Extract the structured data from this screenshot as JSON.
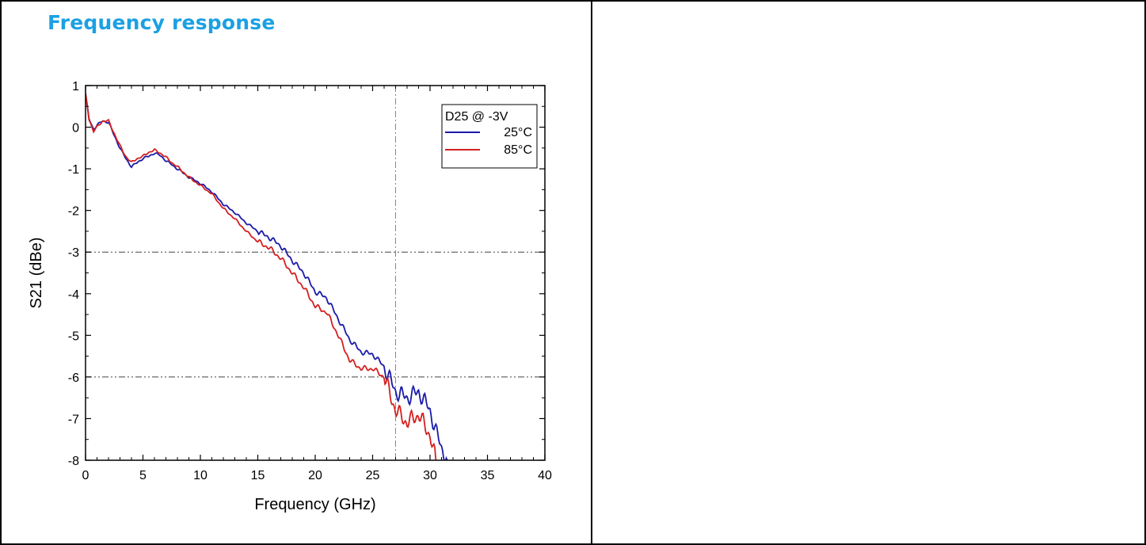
{
  "heading": "Frequency response",
  "chart_data": {
    "type": "line",
    "title": "",
    "xlabel": "Frequency (GHz)",
    "ylabel": "S21 (dBe)",
    "xlim": [
      0,
      40
    ],
    "ylim": [
      -8,
      1
    ],
    "x_ticks": [
      0,
      5,
      10,
      15,
      20,
      25,
      30,
      35,
      40
    ],
    "y_ticks": [
      1,
      0,
      -1,
      -2,
      -3,
      -4,
      -5,
      -6,
      -7,
      -8
    ],
    "x_tick_labels": [
      "0",
      "5",
      "10",
      "15",
      "20",
      "25",
      "30",
      "35",
      "40"
    ],
    "y_tick_labels": [
      "1",
      "0",
      "-1",
      "-2",
      "-3",
      "-4",
      "-5",
      "-6",
      "-7",
      "-8"
    ],
    "grid": false,
    "reference_lines": {
      "horizontal": [
        -3,
        -6
      ],
      "vertical": [
        27
      ]
    },
    "legend": {
      "title": "D25 @ -3V",
      "placement": "top-right"
    },
    "series": [
      {
        "name": "25°C",
        "color": "#1a1aa8",
        "x": [
          0,
          0.3,
          0.7,
          1.0,
          1.5,
          2.0,
          2.5,
          3.0,
          3.5,
          4.0,
          4.5,
          5.0,
          5.5,
          6.0,
          6.5,
          7.0,
          7.5,
          8.0,
          9.0,
          10.0,
          11.0,
          12.0,
          13.0,
          14.0,
          15.0,
          16.0,
          17.0,
          18.0,
          19.0,
          20.0,
          21.0,
          22.0,
          23.0,
          24.0,
          25.0,
          26.0,
          27.0,
          28.0,
          29.0,
          30.0,
          30.5,
          31.0,
          31.5
        ],
        "y": [
          0.8,
          0.2,
          -0.05,
          0.05,
          0.15,
          0.12,
          -0.2,
          -0.5,
          -0.75,
          -0.95,
          -0.85,
          -0.75,
          -0.7,
          -0.62,
          -0.68,
          -0.8,
          -0.9,
          -1.0,
          -1.2,
          -1.35,
          -1.55,
          -1.85,
          -2.05,
          -2.3,
          -2.5,
          -2.65,
          -2.85,
          -3.2,
          -3.5,
          -3.95,
          -4.1,
          -4.6,
          -5.1,
          -5.4,
          -5.45,
          -5.75,
          -6.35,
          -6.5,
          -6.35,
          -6.8,
          -7.3,
          -7.7,
          -8.0
        ]
      },
      {
        "name": "85°C",
        "color": "#d42020",
        "x": [
          0,
          0.3,
          0.7,
          1.0,
          1.5,
          2.0,
          2.5,
          3.0,
          3.5,
          4.0,
          4.5,
          5.0,
          5.5,
          6.0,
          6.5,
          7.0,
          7.5,
          8.0,
          9.0,
          10.0,
          11.0,
          12.0,
          13.0,
          14.0,
          15.0,
          16.0,
          17.0,
          18.0,
          19.0,
          20.0,
          21.0,
          22.0,
          23.0,
          24.0,
          25.0,
          26.0,
          27.0,
          28.0,
          29.0,
          30.0,
          30.5
        ],
        "y": [
          0.8,
          0.2,
          -0.1,
          0.0,
          0.15,
          0.15,
          -0.15,
          -0.45,
          -0.7,
          -0.85,
          -0.75,
          -0.7,
          -0.6,
          -0.55,
          -0.62,
          -0.72,
          -0.85,
          -0.95,
          -1.2,
          -1.4,
          -1.6,
          -1.95,
          -2.2,
          -2.5,
          -2.75,
          -2.9,
          -3.15,
          -3.5,
          -3.85,
          -4.3,
          -4.45,
          -5.0,
          -5.6,
          -5.8,
          -5.8,
          -6.0,
          -6.8,
          -7.1,
          -6.9,
          -7.4,
          -8.0
        ]
      }
    ]
  }
}
